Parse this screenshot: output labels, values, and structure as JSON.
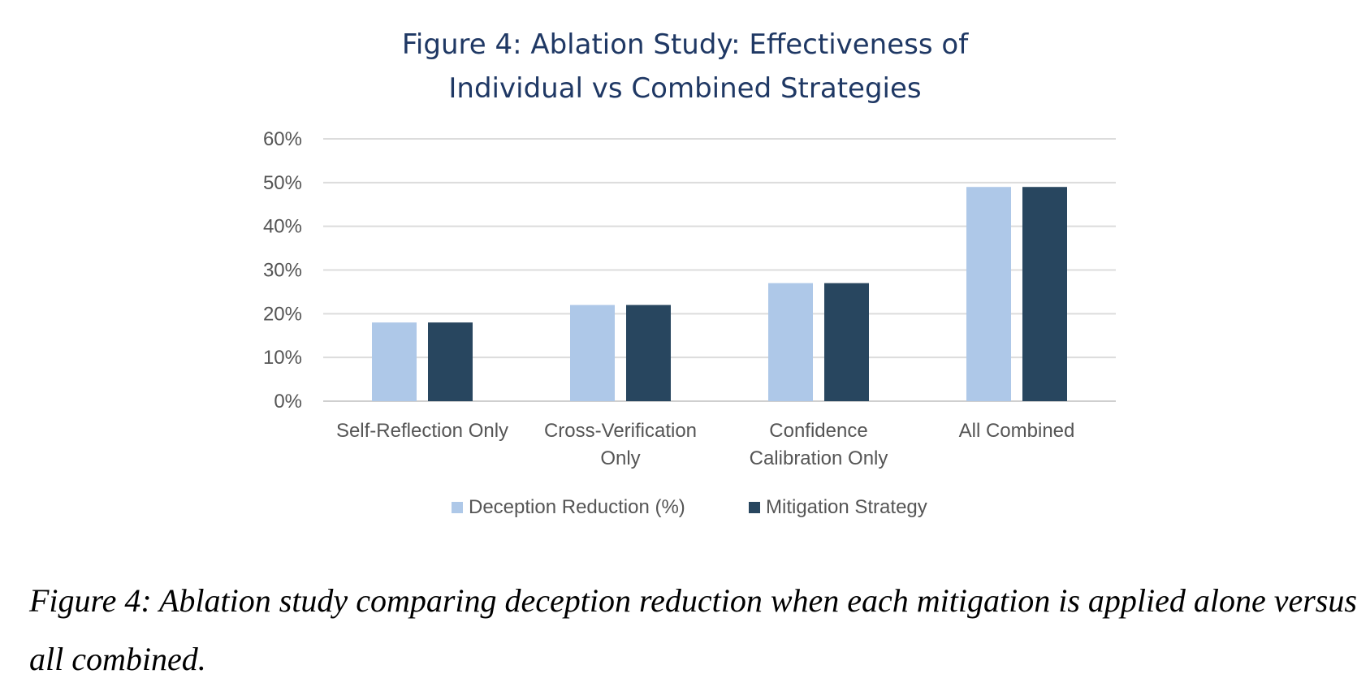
{
  "chart_data": {
    "type": "bar",
    "title": "Figure 4: Ablation Study: Effectiveness of Individual vs Combined Strategies",
    "title_lines": [
      "Figure 4: Ablation Study: Effectiveness of",
      "Individual vs Combined Strategies"
    ],
    "categories": [
      "Self-Reflection Only",
      "Cross-Verification Only",
      "Confidence Calibration Only",
      "All Combined"
    ],
    "category_lines": [
      [
        "Self-Reflection Only"
      ],
      [
        "Cross-Verification",
        "Only"
      ],
      [
        "Confidence",
        "Calibration Only"
      ],
      [
        "All Combined"
      ]
    ],
    "series": [
      {
        "name": "Deception Reduction (%)",
        "values": [
          18,
          22,
          27,
          49
        ],
        "color": "#aec8e8"
      },
      {
        "name": "Mitigation Strategy",
        "values": [
          18,
          22,
          27,
          49
        ],
        "color": "#28465f"
      }
    ],
    "ylim": [
      0,
      60
    ],
    "yticks": [
      "0%",
      "10%",
      "20%",
      "30%",
      "40%",
      "50%",
      "60%"
    ],
    "xlabel": "",
    "ylabel": "",
    "grid": true,
    "legend_position": "bottom"
  },
  "caption": "Figure 4: Ablation study comparing deception reduction when each mitigation is applied alone versus all combined."
}
